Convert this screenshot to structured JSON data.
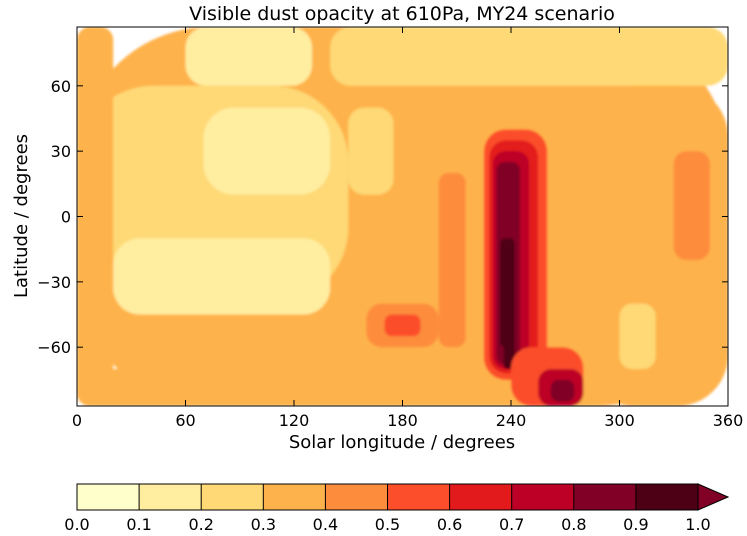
{
  "chart_data": {
    "type": "heatmap",
    "title": "Visible dust opacity at 610Pa, MY24 scenario",
    "xlabel": "Solar longitude / degrees",
    "ylabel": "Latitude / degrees",
    "xlim": [
      0,
      360
    ],
    "ylim": [
      -87,
      87
    ],
    "xticks": [
      "0",
      "60",
      "120",
      "180",
      "240",
      "300",
      "360"
    ],
    "yticks": [
      "60",
      "30",
      "0",
      "−30",
      "−60"
    ],
    "colorbar": {
      "levels": [
        0.0,
        0.1,
        0.2,
        0.3,
        0.4,
        0.5,
        0.6,
        0.7,
        0.8,
        0.9,
        1.0
      ],
      "tick_labels": [
        "0.0",
        "0.1",
        "0.2",
        "0.3",
        "0.4",
        "0.5",
        "0.6",
        "0.7",
        "0.8",
        "0.9",
        "1.0"
      ],
      "colors": [
        "#ffffcc",
        "#ffeda0",
        "#fed976",
        "#feb24c",
        "#fd8d3c",
        "#fc4e2a",
        "#e31a1c",
        "#bd0026",
        "#800026",
        "#4d0015"
      ],
      "extend": "max",
      "extend_color": "#800026"
    },
    "colormap": "YlOrRd",
    "grid": false,
    "features": [
      {
        "ls": [
          0,
          360
        ],
        "lat": [
          -87,
          87
        ],
        "value": 0.3
      },
      {
        "ls": [
          0,
          150
        ],
        "lat": [
          -40,
          60
        ],
        "value": 0.2
      },
      {
        "ls": [
          20,
          140
        ],
        "lat": [
          -45,
          -10
        ],
        "value": 0.15
      },
      {
        "ls": [
          70,
          140
        ],
        "lat": [
          10,
          50
        ],
        "value": 0.15
      },
      {
        "ls": [
          0,
          130
        ],
        "lat": [
          -87,
          -70
        ],
        "value": 0.3
      },
      {
        "ls": [
          0,
          20
        ],
        "lat": [
          -87,
          87
        ],
        "value": 0.3
      },
      {
        "ls": [
          140,
          360
        ],
        "lat": [
          60,
          87
        ],
        "value": 0.2
      },
      {
        "ls": [
          60,
          130
        ],
        "lat": [
          60,
          87
        ],
        "value": 0.15
      },
      {
        "ls": [
          150,
          175
        ],
        "lat": [
          10,
          50
        ],
        "value": 0.2
      },
      {
        "ls": [
          160,
          200
        ],
        "lat": [
          -60,
          -40
        ],
        "value": 0.4
      },
      {
        "ls": [
          170,
          190
        ],
        "lat": [
          -55,
          -45
        ],
        "value": 0.5
      },
      {
        "ls": [
          200,
          215
        ],
        "lat": [
          -60,
          20
        ],
        "value": 0.4
      },
      {
        "ls": [
          225,
          260
        ],
        "lat": [
          -75,
          40
        ],
        "value": 0.5
      },
      {
        "ls": [
          228,
          255
        ],
        "lat": [
          -72,
          35
        ],
        "value": 0.6
      },
      {
        "ls": [
          230,
          250
        ],
        "lat": [
          -70,
          30
        ],
        "value": 0.7
      },
      {
        "ls": [
          232,
          245
        ],
        "lat": [
          -68,
          25
        ],
        "value": 0.8
      },
      {
        "ls": [
          234,
          242
        ],
        "lat": [
          -60,
          -10
        ],
        "value": 0.9
      },
      {
        "ls": [
          236,
          242
        ],
        "lat": [
          -70,
          -55
        ],
        "value": 1.0
      },
      {
        "ls": [
          240,
          280
        ],
        "lat": [
          -87,
          -60
        ],
        "value": 0.5
      },
      {
        "ls": [
          255,
          280
        ],
        "lat": [
          -87,
          -70
        ],
        "value": 0.7
      },
      {
        "ls": [
          262,
          275
        ],
        "lat": [
          -85,
          -75
        ],
        "value": 0.8
      },
      {
        "ls": [
          280,
          360
        ],
        "lat": [
          -87,
          60
        ],
        "value": 0.3
      },
      {
        "ls": [
          330,
          350
        ],
        "lat": [
          -20,
          30
        ],
        "value": 0.4
      },
      {
        "ls": [
          300,
          320
        ],
        "lat": [
          -70,
          -40
        ],
        "value": 0.2
      }
    ]
  }
}
